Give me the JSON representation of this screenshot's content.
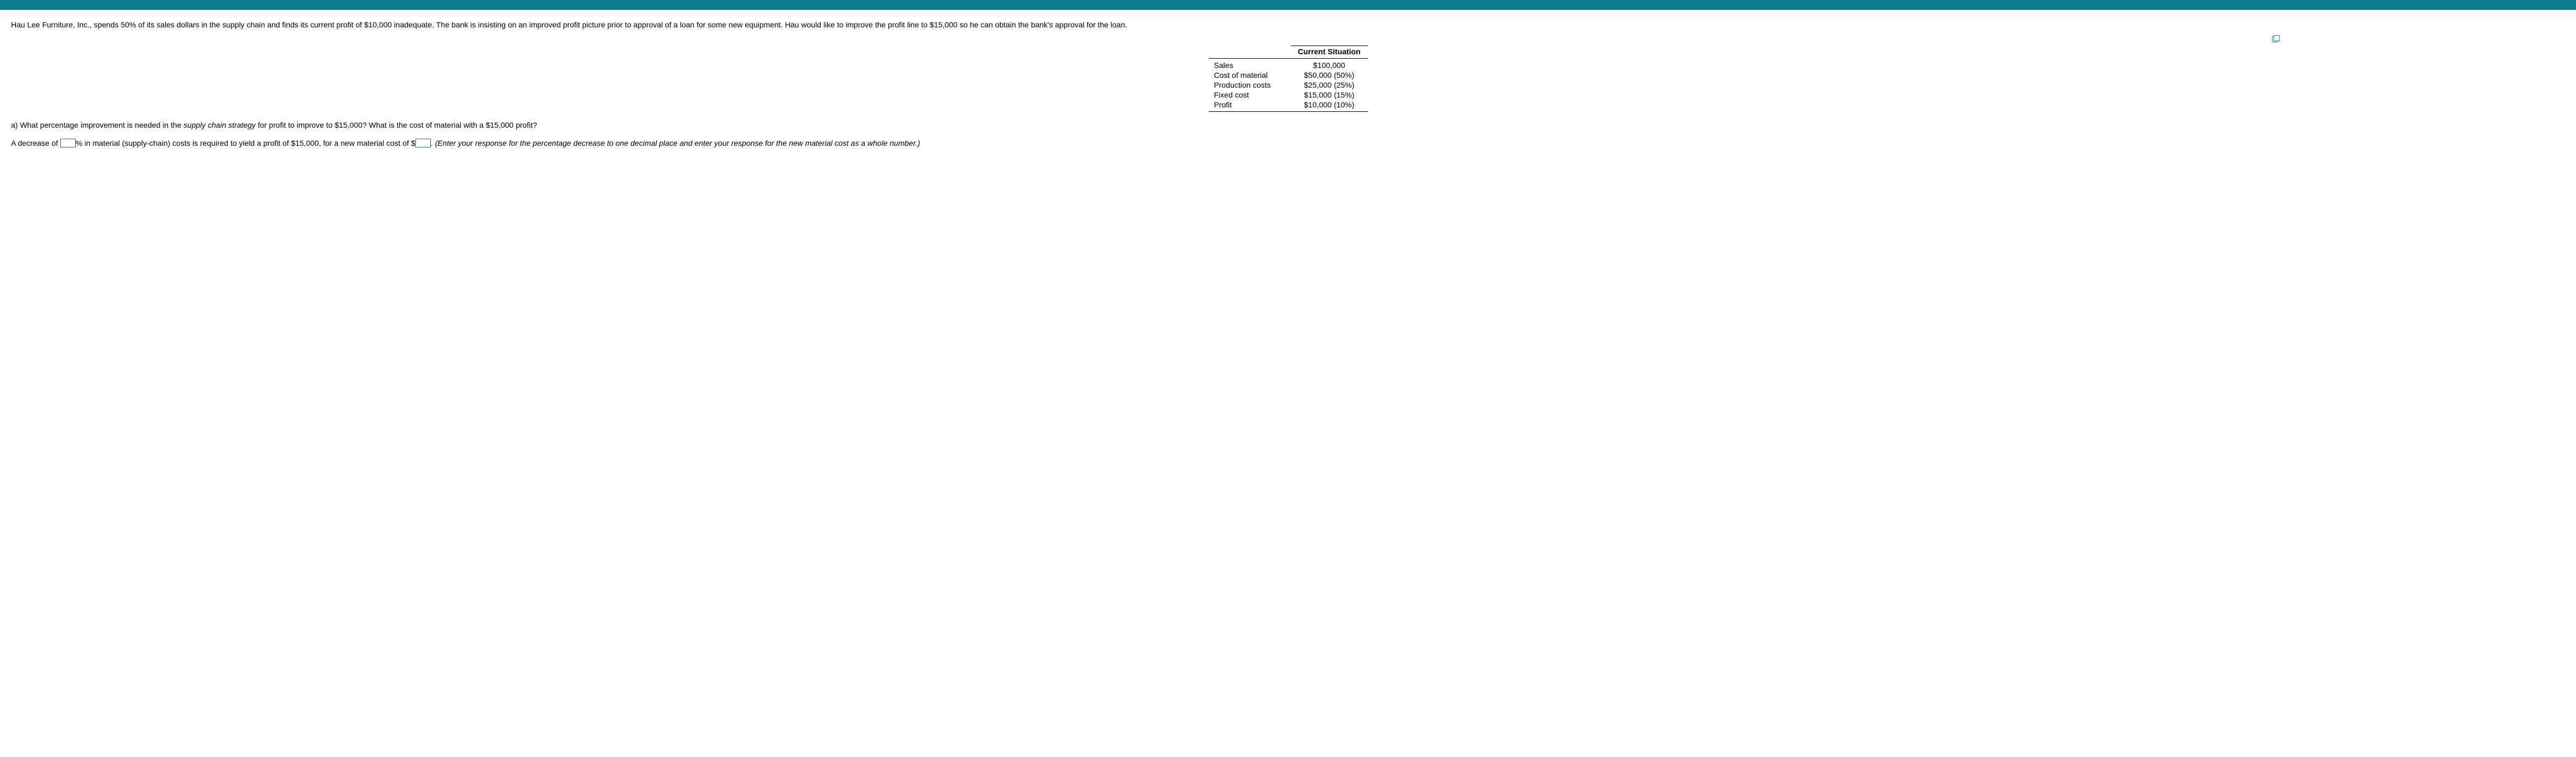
{
  "problem": {
    "p1": "Hau Lee Furniture, Inc., spends 50% of its sales dollars in the supply chain and finds its current profit of $10,000 inadequate. The bank is insisting on an improved profit picture prior to approval of a loan for some new equipment. Hau would like to improve the profit line to $15,000 so he can obtain the bank's approval for the loan."
  },
  "table": {
    "header": "Current Situation",
    "rows": [
      {
        "label": "Sales",
        "value": "$100,000"
      },
      {
        "label": "Cost of material",
        "value": "$50,000 (50%)"
      },
      {
        "label": "Production costs",
        "value": "$25,000 (25%)"
      },
      {
        "label": "Fixed cost",
        "value": "$15,000 (15%)"
      },
      {
        "label": "Profit",
        "value": "$10,000 (10%)"
      }
    ]
  },
  "qa": {
    "lead": "a) What percentage improvement is needed in the ",
    "em": "supply chain strategy",
    "tail": " for profit to improve to $15,000? What is the cost of material with a $15,000 profit?"
  },
  "answer": {
    "s1": "A decrease of ",
    "s2": "% in material (supply-chain) costs is required to yield a profit of $15,000, for a new material cost of $",
    "s3": ". ",
    "hint": "(Enter your response for the percentage decrease to one decimal place and enter your response for the new material cost as a whole number.)"
  }
}
